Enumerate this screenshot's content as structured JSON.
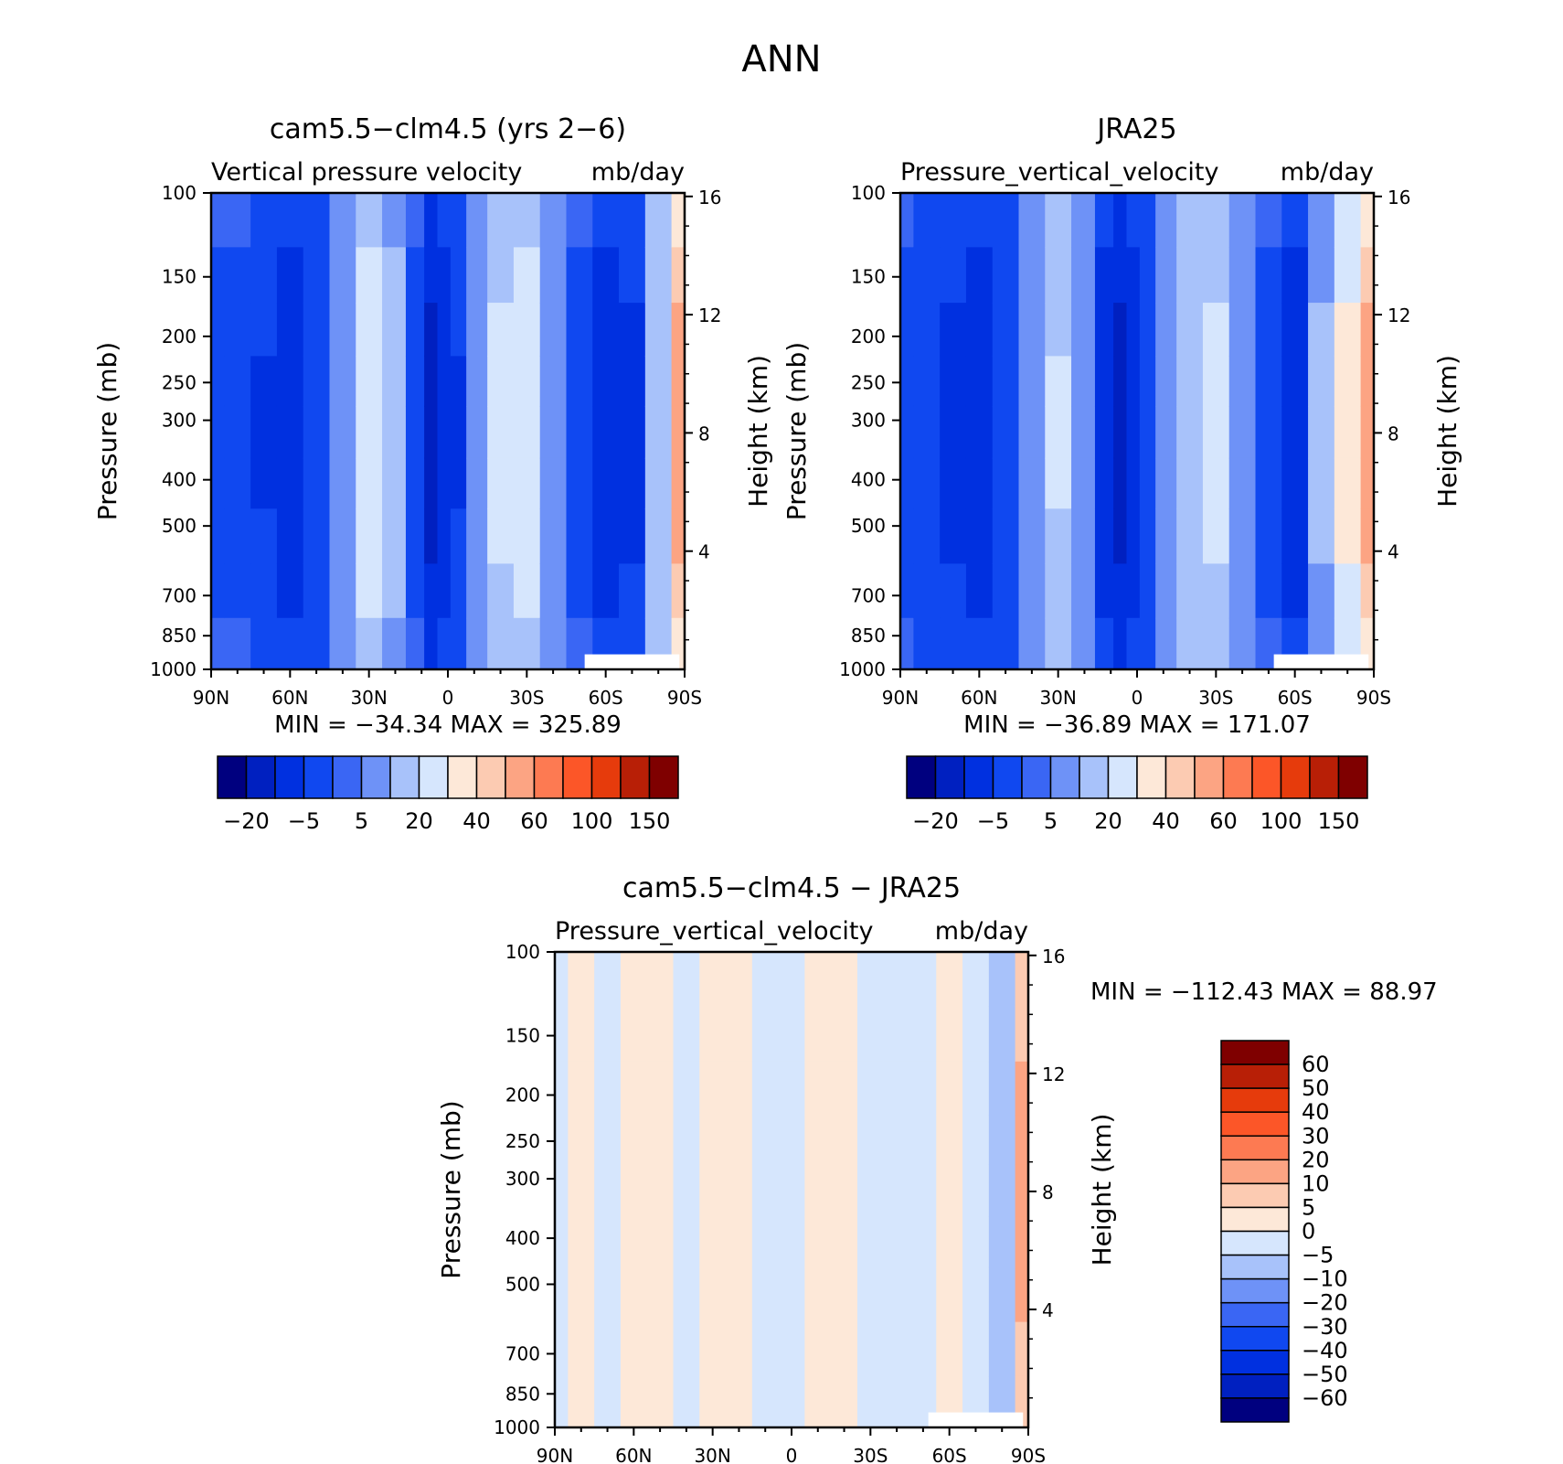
{
  "figure": {
    "title": "ANN"
  },
  "chart_data": [
    {
      "id": "model",
      "type": "heatmap",
      "title": "cam5.5-clm4.5 (yrs 2-6)",
      "subtitle_left": "Vertical pressure velocity",
      "subtitle_right": "mb/day",
      "ylabel": "Pressure (mb)",
      "ylabel_right": "Height (km)",
      "x_ticks": [
        "90N",
        "60N",
        "30N",
        "0",
        "30S",
        "60S",
        "90S"
      ],
      "x_ticks_lat": [
        90,
        60,
        30,
        0,
        -30,
        -60,
        -90
      ],
      "xlim": [
        90,
        -90
      ],
      "y_ticks": [
        "100",
        "150",
        "200",
        "250",
        "300",
        "400",
        "500",
        "700",
        "850",
        "1000"
      ],
      "y_ticks_p": [
        100,
        150,
        200,
        250,
        300,
        400,
        500,
        700,
        850,
        1000
      ],
      "ylim": [
        1000,
        100
      ],
      "y_scale": "log",
      "right_ticks": [
        "16",
        "12",
        "8",
        "4"
      ],
      "right_ticks_km": [
        16,
        12,
        8,
        4
      ],
      "stats": "MIN = -34.34   MAX = 325.89",
      "min": -34.34,
      "max": 325.89,
      "columns": [
        {
          "lat": 90,
          "v": -6
        },
        {
          "lat": 80,
          "v": -7
        },
        {
          "lat": 70,
          "v": -9
        },
        {
          "lat": 60,
          "v": -12
        },
        {
          "lat": 50,
          "v": -8
        },
        {
          "lat": 40,
          "v": 2
        },
        {
          "lat": 30,
          "v": 12
        },
        {
          "lat": 20,
          "v": 6
        },
        {
          "lat": 12,
          "v": -6
        },
        {
          "lat": 6,
          "v": -22
        },
        {
          "lat": 2,
          "v": -12
        },
        {
          "lat": -4,
          "v": -9
        },
        {
          "lat": -10,
          "v": 2
        },
        {
          "lat": -20,
          "v": 10
        },
        {
          "lat": -30,
          "v": 13
        },
        {
          "lat": -40,
          "v": 4
        },
        {
          "lat": -50,
          "v": -7
        },
        {
          "lat": -60,
          "v": -14
        },
        {
          "lat": -70,
          "v": -10
        },
        {
          "lat": -80,
          "v": 8
        },
        {
          "lat": -90,
          "v": 40
        }
      ],
      "colorbar": {
        "orientation": "horizontal",
        "colors": [
          "#00007f",
          "#0020c0",
          "#0030e0",
          "#1048f0",
          "#3a66f4",
          "#6e92f7",
          "#a8c2fa",
          "#d6e6fd",
          "#fde8d8",
          "#fccbb2",
          "#fca483",
          "#fd7a52",
          "#fc5628",
          "#e63b0c",
          "#b81f06",
          "#7f0000"
        ],
        "labels": [
          "-20",
          "-5",
          "5",
          "20",
          "40",
          "60",
          "100",
          "150"
        ]
      }
    },
    {
      "id": "obs",
      "type": "heatmap",
      "title": "JRA25",
      "subtitle_left": "Pressure_vertical_velocity",
      "subtitle_right": "mb/day",
      "ylabel": "Pressure (mb)",
      "ylabel_right": "Height (km)",
      "x_ticks": [
        "90N",
        "60N",
        "30N",
        "0",
        "30S",
        "60S",
        "90S"
      ],
      "x_ticks_lat": [
        90,
        60,
        30,
        0,
        -30,
        -60,
        -90
      ],
      "xlim": [
        90,
        -90
      ],
      "y_ticks": [
        "100",
        "150",
        "200",
        "250",
        "300",
        "400",
        "500",
        "700",
        "850",
        "1000"
      ],
      "y_ticks_p": [
        100,
        150,
        200,
        250,
        300,
        400,
        500,
        700,
        850,
        1000
      ],
      "ylim": [
        1000,
        100
      ],
      "y_scale": "log",
      "right_ticks": [
        "16",
        "12",
        "8",
        "4"
      ],
      "right_ticks_km": [
        16,
        12,
        8,
        4
      ],
      "stats": "MIN = -36.89   MAX = 171.07",
      "min": -36.89,
      "max": 171.07,
      "columns": [
        {
          "lat": 90,
          "v": -6
        },
        {
          "lat": 80,
          "v": -8
        },
        {
          "lat": 70,
          "v": -11
        },
        {
          "lat": 60,
          "v": -14
        },
        {
          "lat": 50,
          "v": -8
        },
        {
          "lat": 40,
          "v": 2
        },
        {
          "lat": 30,
          "v": 9
        },
        {
          "lat": 20,
          "v": 2
        },
        {
          "lat": 12,
          "v": -12
        },
        {
          "lat": 6,
          "v": -22
        },
        {
          "lat": 2,
          "v": -14
        },
        {
          "lat": -4,
          "v": -8
        },
        {
          "lat": -10,
          "v": 1
        },
        {
          "lat": -20,
          "v": 8
        },
        {
          "lat": -30,
          "v": 11
        },
        {
          "lat": -40,
          "v": 4
        },
        {
          "lat": -50,
          "v": -7
        },
        {
          "lat": -60,
          "v": -13
        },
        {
          "lat": -70,
          "v": 5
        },
        {
          "lat": -80,
          "v": 20
        },
        {
          "lat": -90,
          "v": 40
        }
      ],
      "colorbar": {
        "orientation": "horizontal",
        "colors": [
          "#00007f",
          "#0020c0",
          "#0030e0",
          "#1048f0",
          "#3a66f4",
          "#6e92f7",
          "#a8c2fa",
          "#d6e6fd",
          "#fde8d8",
          "#fccbb2",
          "#fca483",
          "#fd7a52",
          "#fc5628",
          "#e63b0c",
          "#b81f06",
          "#7f0000"
        ],
        "labels": [
          "-20",
          "-5",
          "5",
          "20",
          "40",
          "60",
          "100",
          "150"
        ]
      }
    },
    {
      "id": "diff",
      "type": "heatmap",
      "title": "cam5.5-clm4.5 - JRA25",
      "subtitle_left": "Pressure_vertical_velocity",
      "subtitle_right": "mb/day",
      "ylabel": "Pressure (mb)",
      "ylabel_right": "Height (km)",
      "x_ticks": [
        "90N",
        "60N",
        "30N",
        "0",
        "30S",
        "60S",
        "90S"
      ],
      "x_ticks_lat": [
        90,
        60,
        30,
        0,
        -30,
        -60,
        -90
      ],
      "xlim": [
        90,
        -90
      ],
      "y_ticks": [
        "100",
        "150",
        "200",
        "250",
        "300",
        "400",
        "500",
        "700",
        "850",
        "1000"
      ],
      "y_ticks_p": [
        100,
        150,
        200,
        250,
        300,
        400,
        500,
        700,
        850,
        1000
      ],
      "ylim": [
        1000,
        100
      ],
      "y_scale": "log",
      "right_ticks": [
        "16",
        "12",
        "8",
        "4"
      ],
      "right_ticks_km": [
        16,
        12,
        8,
        4
      ],
      "stats": "MIN = -112.43   MAX =   88.97",
      "min": -112.43,
      "max": 88.97,
      "columns": [
        {
          "lat": 90,
          "v": -2
        },
        {
          "lat": 80,
          "v": 2
        },
        {
          "lat": 70,
          "v": -1
        },
        {
          "lat": 60,
          "v": 1
        },
        {
          "lat": 50,
          "v": 3
        },
        {
          "lat": 40,
          "v": -2
        },
        {
          "lat": 30,
          "v": 4
        },
        {
          "lat": 20,
          "v": 2
        },
        {
          "lat": 10,
          "v": -2
        },
        {
          "lat": 0,
          "v": -3
        },
        {
          "lat": -10,
          "v": 2
        },
        {
          "lat": -20,
          "v": 3
        },
        {
          "lat": -30,
          "v": -1
        },
        {
          "lat": -40,
          "v": -2
        },
        {
          "lat": -50,
          "v": -1
        },
        {
          "lat": -60,
          "v": 2
        },
        {
          "lat": -70,
          "v": -4
        },
        {
          "lat": -80,
          "v": -8
        },
        {
          "lat": -90,
          "v": 10
        }
      ],
      "colorbar": {
        "orientation": "vertical",
        "colors": [
          "#7f0000",
          "#b81f06",
          "#e63b0c",
          "#fc5628",
          "#fd7a52",
          "#fca483",
          "#fccbb2",
          "#fde8d8",
          "#d6e6fd",
          "#a8c2fa",
          "#6e92f7",
          "#3a66f4",
          "#1048f0",
          "#0030e0",
          "#0020c0",
          "#00007f"
        ],
        "labels": [
          "60",
          "50",
          "40",
          "30",
          "20",
          "10",
          "5",
          "0",
          "-5",
          "-10",
          "-20",
          "-30",
          "-40",
          "-50",
          "-60"
        ]
      }
    }
  ]
}
